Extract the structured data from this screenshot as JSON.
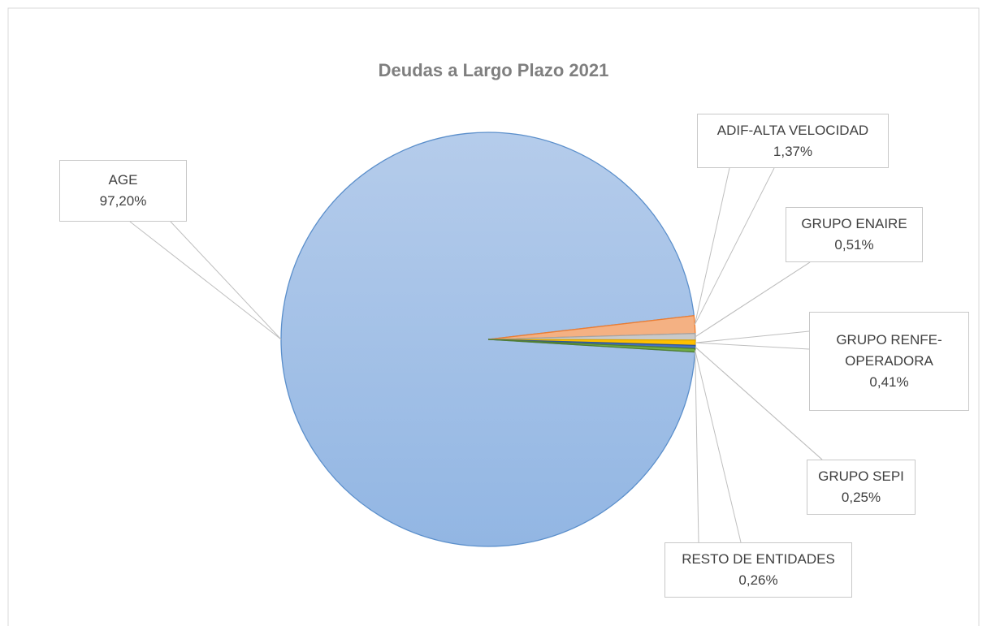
{
  "chart_data": {
    "type": "pie",
    "title": "Deudas a Largo Plazo 2021",
    "categories": [
      "AGE",
      "ADIF-ALTA VELOCIDAD",
      "GRUPO ENAIRE",
      "GRUPO RENFE-OPERADORA",
      "GRUPO SEPI",
      "RESTO DE ENTIDADES"
    ],
    "values": [
      97.2,
      1.37,
      0.51,
      0.41,
      0.25,
      0.26
    ],
    "value_labels": [
      "97,20%",
      "1,37%",
      "0,51%",
      "0,41%",
      "0,25%",
      "0,26%"
    ],
    "colors": [
      "#a6c2e8",
      "#f4b183",
      "#c9c9c9",
      "#ffc000",
      "#4472c4",
      "#70ad47"
    ]
  }
}
